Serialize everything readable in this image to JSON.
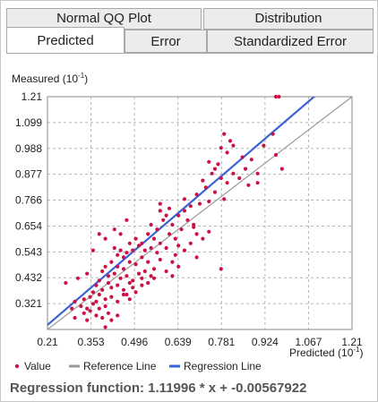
{
  "tabs_row1": [
    {
      "label": "Normal QQ Plot"
    },
    {
      "label": "Distribution"
    }
  ],
  "tabs_row2": [
    {
      "label": "Predicted",
      "active": true
    },
    {
      "label": "Error"
    },
    {
      "label": "Standardized Error"
    }
  ],
  "chart_data": {
    "type": "scatter",
    "ylabel": "Measured (10",
    "ylabel_exp": "-1",
    "ylabel_close": ")",
    "xlabel": "Predicted (10",
    "xlabel_exp": "-1",
    "xlabel_close": ")",
    "xlim": [
      0.21,
      1.21
    ],
    "ylim": [
      0.21,
      1.21
    ],
    "x_ticks": [
      "0.21",
      "0.353",
      "0.496",
      "0.639",
      "0.781",
      "0.924",
      "1.067",
      "1.21"
    ],
    "y_ticks": [
      "1.21",
      "1.099",
      "0.988",
      "0.877",
      "0.766",
      "0.654",
      "0.543",
      "0.432",
      "0.321"
    ],
    "grid": true,
    "legend": [
      "Value",
      "Reference Line",
      "Regression Line"
    ],
    "legend_position": "bottom",
    "colors": {
      "points": "#cc1144",
      "reference": "#999999",
      "regression": "#3a62d8"
    },
    "regression": {
      "slope": 1.11996,
      "intercept": -0.00567922
    },
    "points": [
      [
        0.96,
        1.21
      ],
      [
        0.97,
        1.21
      ],
      [
        0.92,
        1.0
      ],
      [
        0.95,
        1.05
      ],
      [
        0.9,
        0.88
      ],
      [
        0.98,
        0.9
      ],
      [
        0.96,
        0.96
      ],
      [
        0.88,
        0.94
      ],
      [
        0.85,
        0.95
      ],
      [
        0.86,
        0.9
      ],
      [
        0.84,
        0.86
      ],
      [
        0.87,
        0.83
      ],
      [
        0.9,
        0.84
      ],
      [
        0.82,
        1.0
      ],
      [
        0.8,
        0.97
      ],
      [
        0.78,
        0.99
      ],
      [
        0.81,
        1.02
      ],
      [
        0.79,
        1.05
      ],
      [
        0.77,
        0.92
      ],
      [
        0.76,
        0.9
      ],
      [
        0.74,
        0.93
      ],
      [
        0.75,
        0.88
      ],
      [
        0.72,
        0.85
      ],
      [
        0.73,
        0.82
      ],
      [
        0.76,
        0.8
      ],
      [
        0.78,
        0.86
      ],
      [
        0.8,
        0.84
      ],
      [
        0.82,
        0.88
      ],
      [
        0.79,
        0.77
      ],
      [
        0.74,
        0.76
      ],
      [
        0.7,
        0.79
      ],
      [
        0.71,
        0.75
      ],
      [
        0.68,
        0.74
      ],
      [
        0.66,
        0.72
      ],
      [
        0.64,
        0.7
      ],
      [
        0.67,
        0.68
      ],
      [
        0.69,
        0.66
      ],
      [
        0.7,
        0.62
      ],
      [
        0.72,
        0.6
      ],
      [
        0.74,
        0.63
      ],
      [
        0.65,
        0.64
      ],
      [
        0.62,
        0.66
      ],
      [
        0.6,
        0.7
      ],
      [
        0.61,
        0.73
      ],
      [
        0.58,
        0.75
      ],
      [
        0.59,
        0.68
      ],
      [
        0.63,
        0.6
      ],
      [
        0.64,
        0.57
      ],
      [
        0.66,
        0.55
      ],
      [
        0.68,
        0.58
      ],
      [
        0.57,
        0.64
      ],
      [
        0.55,
        0.66
      ],
      [
        0.56,
        0.6
      ],
      [
        0.54,
        0.62
      ],
      [
        0.52,
        0.58
      ],
      [
        0.53,
        0.55
      ],
      [
        0.55,
        0.56
      ],
      [
        0.57,
        0.54
      ],
      [
        0.58,
        0.58
      ],
      [
        0.6,
        0.56
      ],
      [
        0.5,
        0.6
      ],
      [
        0.51,
        0.57
      ],
      [
        0.49,
        0.55
      ],
      [
        0.48,
        0.58
      ],
      [
        0.47,
        0.54
      ],
      [
        0.46,
        0.52
      ],
      [
        0.45,
        0.55
      ],
      [
        0.44,
        0.53
      ],
      [
        0.43,
        0.56
      ],
      [
        0.42,
        0.5
      ],
      [
        0.44,
        0.48
      ],
      [
        0.46,
        0.47
      ],
      [
        0.48,
        0.5
      ],
      [
        0.5,
        0.49
      ],
      [
        0.52,
        0.52
      ],
      [
        0.54,
        0.5
      ],
      [
        0.56,
        0.47
      ],
      [
        0.58,
        0.51
      ],
      [
        0.62,
        0.5
      ],
      [
        0.64,
        0.48
      ],
      [
        0.4,
        0.48
      ],
      [
        0.39,
        0.46
      ],
      [
        0.41,
        0.44
      ],
      [
        0.43,
        0.45
      ],
      [
        0.45,
        0.43
      ],
      [
        0.47,
        0.44
      ],
      [
        0.49,
        0.42
      ],
      [
        0.51,
        0.45
      ],
      [
        0.53,
        0.46
      ],
      [
        0.55,
        0.44
      ],
      [
        0.38,
        0.42
      ],
      [
        0.37,
        0.4
      ],
      [
        0.39,
        0.38
      ],
      [
        0.41,
        0.41
      ],
      [
        0.42,
        0.39
      ],
      [
        0.44,
        0.4
      ],
      [
        0.46,
        0.38
      ],
      [
        0.48,
        0.41
      ],
      [
        0.5,
        0.37
      ],
      [
        0.52,
        0.4
      ],
      [
        0.36,
        0.37
      ],
      [
        0.35,
        0.35
      ],
      [
        0.37,
        0.33
      ],
      [
        0.38,
        0.36
      ],
      [
        0.4,
        0.34
      ],
      [
        0.42,
        0.35
      ],
      [
        0.44,
        0.33
      ],
      [
        0.46,
        0.36
      ],
      [
        0.48,
        0.34
      ],
      [
        0.33,
        0.34
      ],
      [
        0.32,
        0.31
      ],
      [
        0.34,
        0.3
      ],
      [
        0.36,
        0.32
      ],
      [
        0.38,
        0.3
      ],
      [
        0.4,
        0.31
      ],
      [
        0.3,
        0.33
      ],
      [
        0.29,
        0.3
      ],
      [
        0.33,
        0.28
      ],
      [
        0.35,
        0.29
      ],
      [
        0.37,
        0.27
      ],
      [
        0.39,
        0.26
      ],
      [
        0.41,
        0.28
      ],
      [
        0.27,
        0.41
      ],
      [
        0.31,
        0.43
      ],
      [
        0.34,
        0.45
      ],
      [
        0.36,
        0.55
      ],
      [
        0.38,
        0.62
      ],
      [
        0.4,
        0.6
      ],
      [
        0.43,
        0.64
      ],
      [
        0.45,
        0.62
      ],
      [
        0.47,
        0.68
      ],
      [
        0.58,
        0.72
      ],
      [
        0.61,
        0.62
      ],
      [
        0.66,
        0.77
      ],
      [
        0.69,
        0.65
      ],
      [
        0.63,
        0.53
      ],
      [
        0.7,
        0.52
      ],
      [
        0.78,
        0.47
      ],
      [
        0.4,
        0.22
      ],
      [
        0.42,
        0.25
      ],
      [
        0.44,
        0.27
      ],
      [
        0.34,
        0.25
      ],
      [
        0.3,
        0.26
      ],
      [
        0.52,
        0.43
      ],
      [
        0.54,
        0.41
      ],
      [
        0.56,
        0.43
      ],
      [
        0.6,
        0.46
      ],
      [
        0.62,
        0.44
      ],
      [
        0.47,
        0.36
      ],
      [
        0.49,
        0.39
      ]
    ]
  },
  "regression_text": "Regression function: 1.11996 * x + -0.00567922"
}
